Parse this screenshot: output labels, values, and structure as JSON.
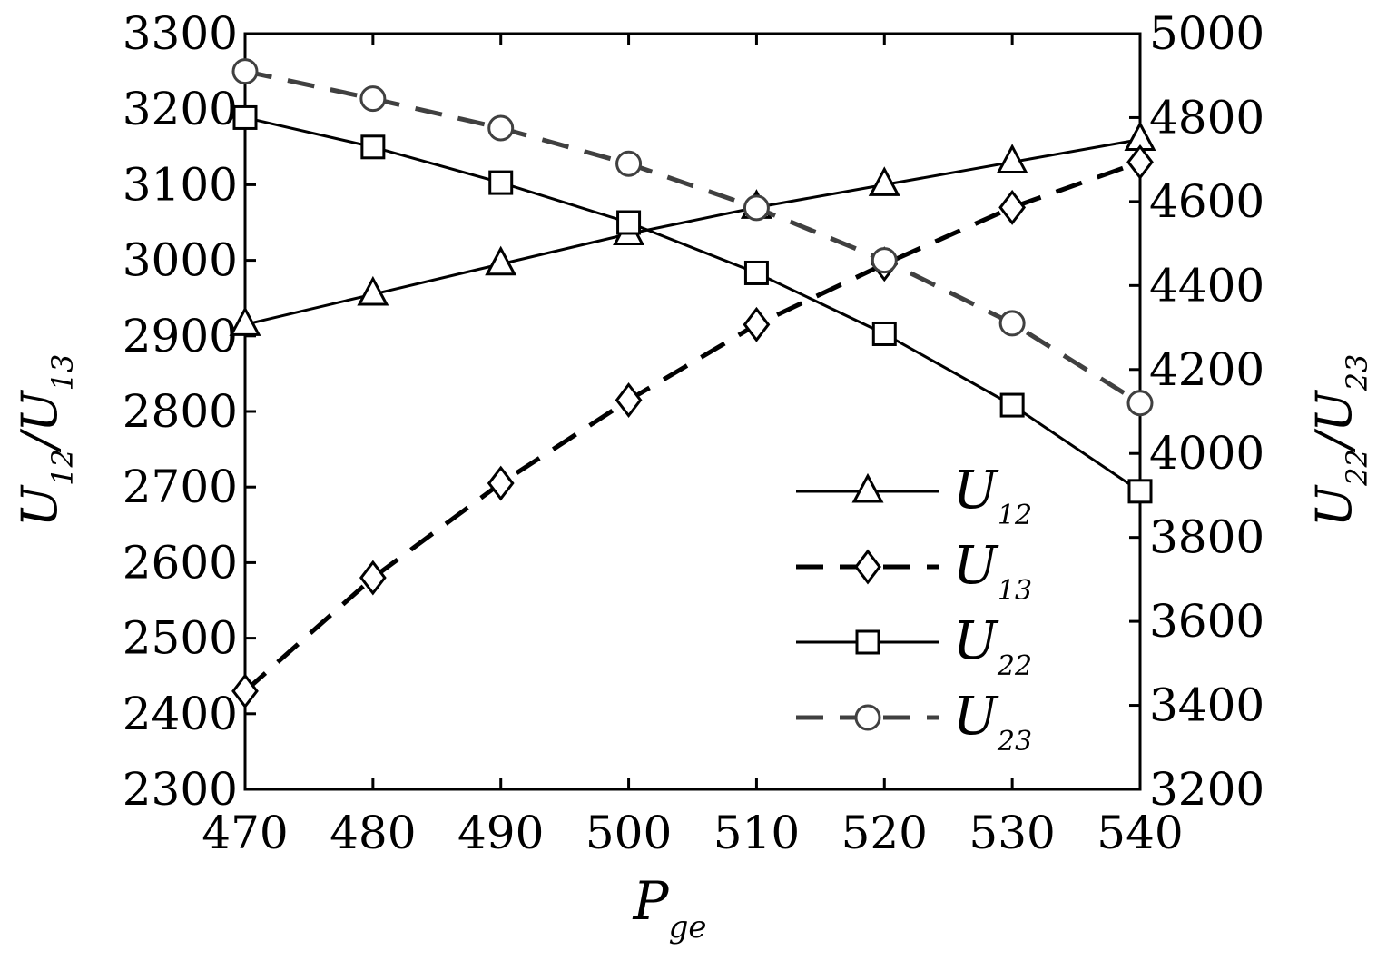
{
  "chart_data": {
    "type": "line",
    "x": [
      470,
      480,
      490,
      500,
      510,
      520,
      530,
      540
    ],
    "xlim": [
      470,
      540
    ],
    "xticks": [
      "470",
      "480",
      "490",
      "500",
      "510",
      "520",
      "530",
      "540"
    ],
    "xlabel": {
      "main": "P",
      "sub": "ge"
    },
    "ylabel_left": {
      "a": "U",
      "a_sub": "12",
      "sep": "/",
      "b": "U",
      "b_sub": "13"
    },
    "ylabel_right": {
      "a": "U",
      "a_sub": "22",
      "sep": "/",
      "b": "U",
      "b_sub": "23"
    },
    "ylim_left": [
      2300,
      3300
    ],
    "ylim_right": [
      3200,
      5000
    ],
    "yticks_left": [
      "2300",
      "2400",
      "2500",
      "2600",
      "2700",
      "2800",
      "2900",
      "3000",
      "3100",
      "3200",
      "3300"
    ],
    "yticks_right": [
      "3200",
      "3400",
      "3600",
      "3800",
      "4000",
      "4200",
      "4400",
      "4600",
      "4800",
      "5000"
    ],
    "legend_position": "bottom-right",
    "grid": false,
    "series": [
      {
        "name": "U",
        "sub": "12",
        "axis": "left",
        "marker": "triangle",
        "dash": "solid",
        "color": "#000000",
        "values": [
          2915,
          2955,
          2995,
          3035,
          3070,
          3100,
          3130,
          3160
        ]
      },
      {
        "name": "U",
        "sub": "13",
        "axis": "left",
        "marker": "diamond",
        "dash": "dashed",
        "color": "#000000",
        "values": [
          2430,
          2580,
          2705,
          2815,
          2915,
          2995,
          3070,
          3130
        ]
      },
      {
        "name": "U",
        "sub": "22",
        "axis": "right",
        "marker": "square",
        "dash": "solid",
        "color": "#000000",
        "values": [
          4800,
          4730,
          4645,
          4550,
          4430,
          4285,
          4115,
          3910
        ]
      },
      {
        "name": "U",
        "sub": "23",
        "axis": "right",
        "marker": "circle",
        "dash": "dashed",
        "color": "#404040",
        "values": [
          4910,
          4845,
          4775,
          4690,
          4585,
          4460,
          4310,
          4120
        ]
      }
    ]
  }
}
